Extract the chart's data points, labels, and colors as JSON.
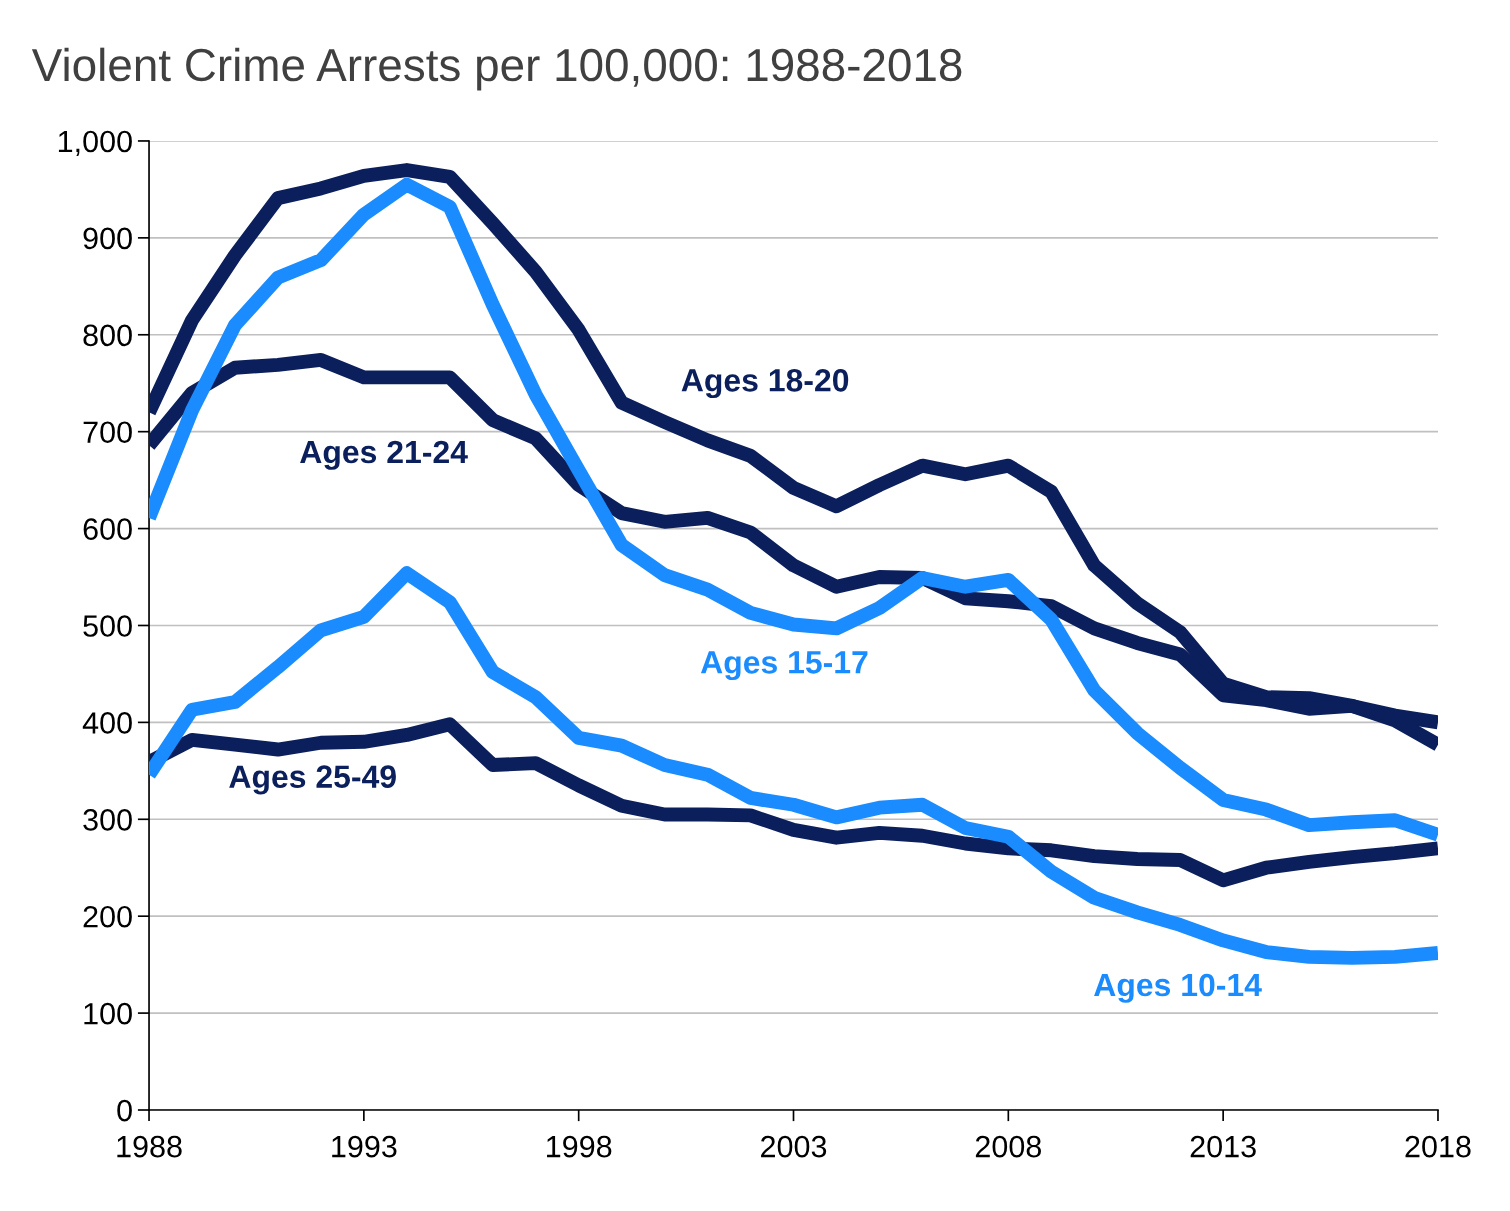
{
  "chart_data": {
    "type": "line",
    "title": "Violent Crime Arrests per 100,000: 1988-2018",
    "x": [
      1988,
      1989,
      1990,
      1991,
      1992,
      1993,
      1994,
      1995,
      1996,
      1997,
      1998,
      1999,
      2000,
      2001,
      2002,
      2003,
      2004,
      2005,
      2006,
      2007,
      2008,
      2009,
      2010,
      2011,
      2012,
      2013,
      2014,
      2015,
      2016,
      2017,
      2018
    ],
    "series": [
      {
        "name": "Ages 18-20",
        "color": "#0b1f5c",
        "values": [
          720,
          815,
          882,
          941,
          951,
          964,
          970,
          963,
          915,
          865,
          805,
          730,
          710,
          691,
          675,
          642,
          623,
          645,
          665,
          656,
          665,
          638,
          562,
          523,
          493,
          440,
          426,
          425,
          417,
          402,
          377
        ]
      },
      {
        "name": "Ages 21-24",
        "color": "#0b1f5c",
        "values": [
          686,
          740,
          766,
          769,
          774,
          756,
          756,
          756,
          712,
          693,
          645,
          616,
          607,
          611,
          596,
          562,
          540,
          550,
          549,
          528,
          525,
          520,
          497,
          482,
          470,
          428,
          423,
          414,
          417,
          407,
          400
        ]
      },
      {
        "name": "Ages 15-17",
        "color": "#1a8cff",
        "values": [
          611,
          722,
          810,
          859,
          877,
          924,
          955,
          932,
          831,
          738,
          660,
          583,
          552,
          537,
          513,
          501,
          497,
          518,
          549,
          540,
          547,
          506,
          433,
          389,
          353,
          320,
          310,
          294,
          297,
          299,
          284
        ]
      },
      {
        "name": "Ages 25-49",
        "color": "#0b1f5c",
        "values": [
          359,
          382,
          377,
          372,
          379,
          380,
          387,
          398,
          356,
          358,
          335,
          314,
          305,
          305,
          304,
          289,
          281,
          286,
          283,
          275,
          270,
          268,
          262,
          259,
          258,
          237,
          250,
          256,
          261,
          265,
          270
        ]
      },
      {
        "name": "Ages 10-14",
        "color": "#1a8cff",
        "values": [
          346,
          413,
          421,
          457,
          495,
          509,
          554,
          524,
          452,
          426,
          384,
          376,
          356,
          346,
          322,
          315,
          302,
          312,
          315,
          291,
          282,
          246,
          219,
          204,
          191,
          175,
          163,
          158,
          157,
          158,
          162
        ]
      }
    ],
    "xlim": [
      1988,
      2018
    ],
    "xticks": [
      1988,
      1993,
      1998,
      2003,
      2008,
      2013,
      2018
    ],
    "ylim": [
      0,
      1000
    ],
    "yticks": [
      0,
      100,
      200,
      300,
      400,
      500,
      600,
      700,
      800,
      900,
      {
        "value": 1000,
        "label": "1,000"
      }
    ],
    "grid": "y",
    "legend": false
  }
}
